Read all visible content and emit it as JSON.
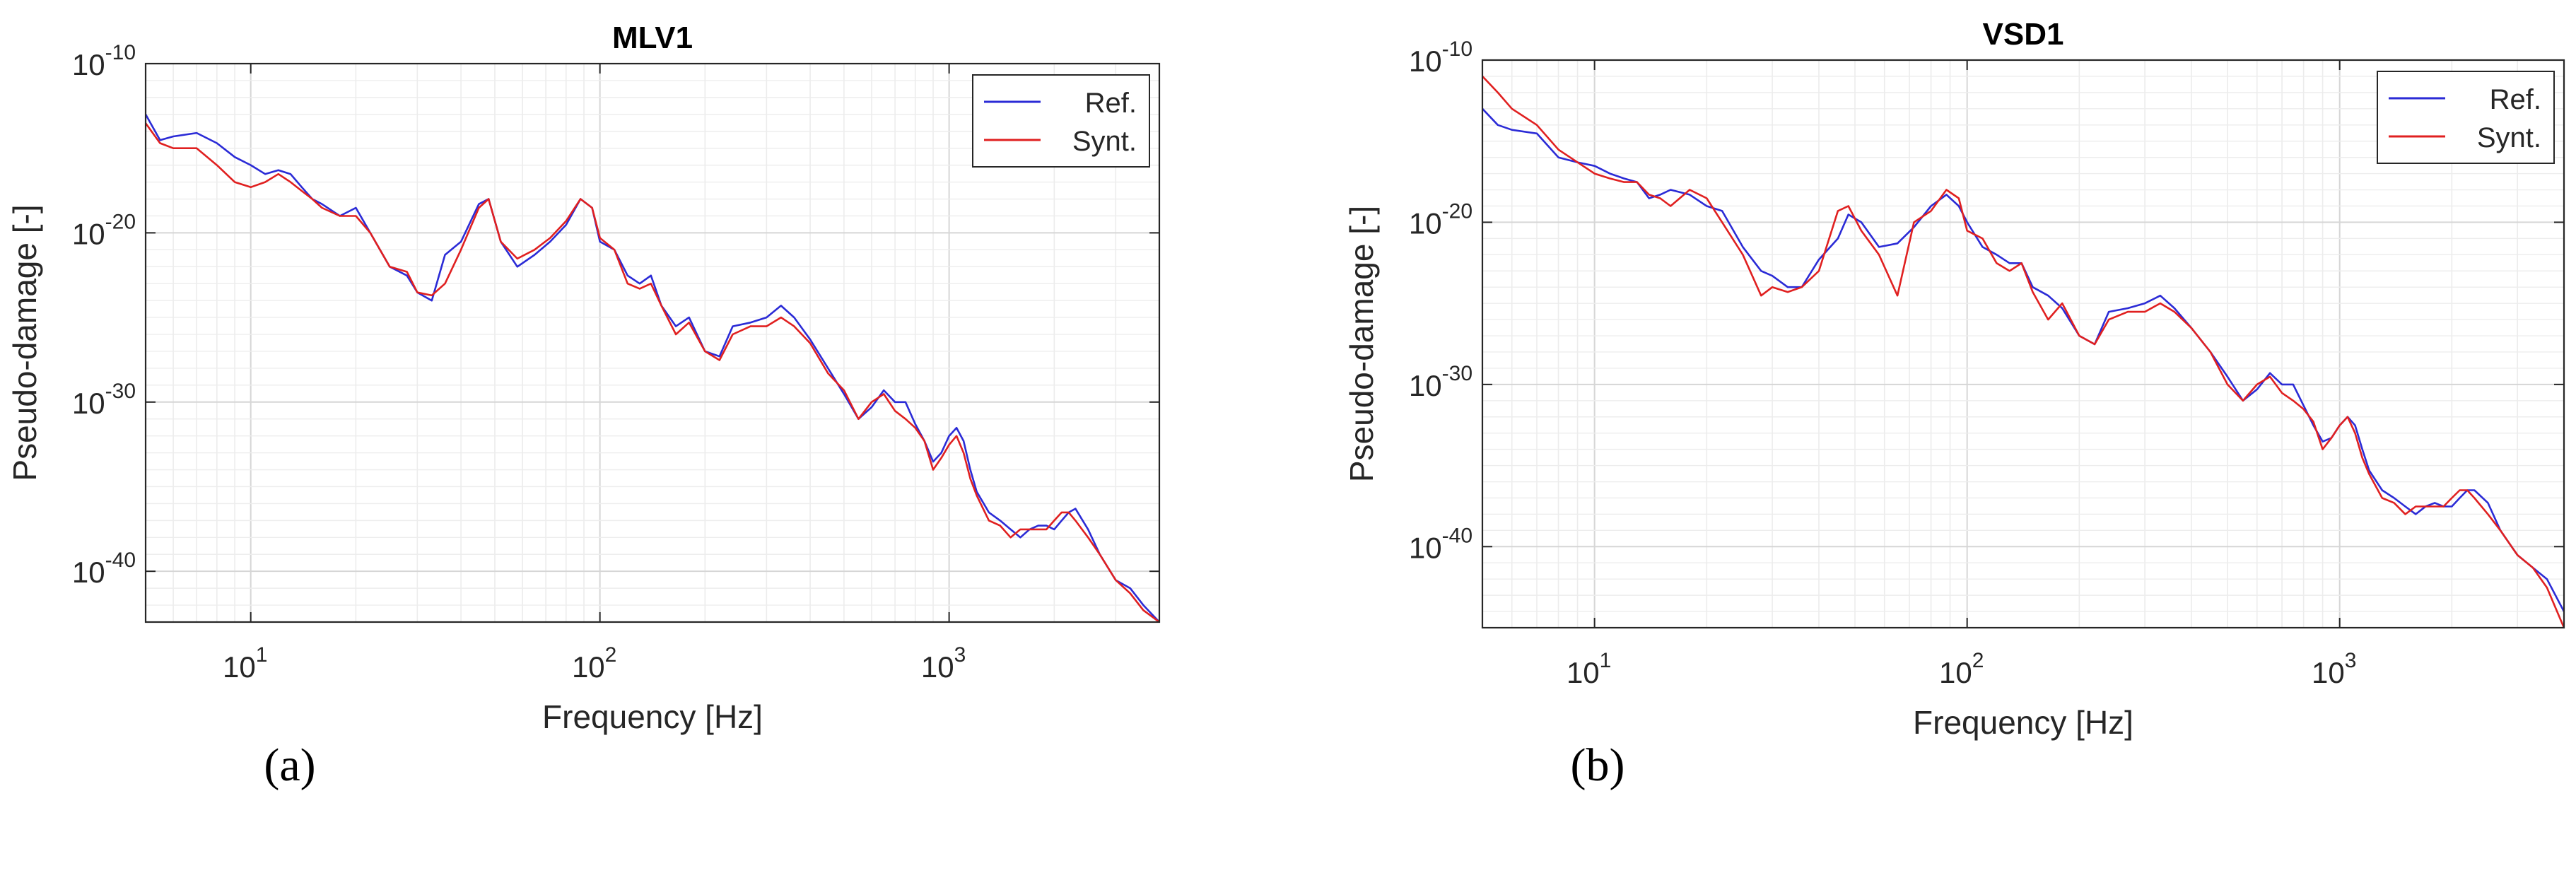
{
  "chart_data": [
    {
      "type": "line",
      "title": "MLV1",
      "xlabel": "Frequency [Hz]",
      "ylabel": "Pseudo-damage [-]",
      "x_scale": "log",
      "y_scale": "log",
      "xlim": [
        5,
        4000
      ],
      "ylim": [
        1e-43,
        1e-10
      ],
      "x_ticks": [
        {
          "value": 10,
          "exp": "1"
        },
        {
          "value": 100,
          "exp": "2"
        },
        {
          "value": 1000,
          "exp": "3"
        }
      ],
      "y_ticks": [
        {
          "value": 1e-40,
          "exp": "-40"
        },
        {
          "value": 1e-30,
          "exp": "-30"
        },
        {
          "value": 1e-20,
          "exp": "-20"
        },
        {
          "value": 1e-10,
          "exp": "-10"
        }
      ],
      "tick_base": "10",
      "grid": true,
      "legend": "top-right",
      "caption": "(a)",
      "series": [
        {
          "name": "Ref.",
          "color": "#2b2bd6",
          "x": [
            5,
            5.5,
            6,
            7,
            8,
            9,
            10,
            11,
            12,
            13,
            14,
            15,
            16,
            18,
            20,
            22,
            25,
            28,
            30,
            33,
            36,
            40,
            45,
            48,
            52,
            58,
            65,
            72,
            80,
            88,
            95,
            100,
            110,
            120,
            130,
            140,
            150,
            165,
            180,
            200,
            220,
            240,
            270,
            300,
            330,
            360,
            400,
            450,
            500,
            550,
            600,
            650,
            700,
            750,
            800,
            850,
            900,
            950,
            1000,
            1050,
            1100,
            1150,
            1200,
            1300,
            1400,
            1500,
            1600,
            1700,
            1800,
            1900,
            2000,
            2100,
            2200,
            2300,
            2500,
            2700,
            3000,
            3300,
            3600,
            4000
          ],
          "y": [
            1e-13,
            3e-15,
            5e-15,
            8e-15,
            2e-15,
            3e-16,
            1e-16,
            3e-17,
            5e-17,
            3e-17,
            5e-18,
            1e-18,
            5e-19,
            1e-19,
            3e-19,
            1e-20,
            1e-22,
            3e-23,
            3e-24,
            1e-24,
            5e-22,
            3e-21,
            5e-19,
            1e-18,
            3e-21,
            1e-22,
            5e-22,
            3e-21,
            3e-20,
            1e-18,
            3e-19,
            3e-21,
            1e-21,
            3e-23,
            1e-23,
            3e-23,
            5e-25,
            3e-26,
            1e-25,
            1e-27,
            5e-28,
            3e-26,
            5e-26,
            1e-25,
            5e-25,
            1e-25,
            5e-27,
            1e-28,
            3e-30,
            1e-31,
            5e-31,
            5e-30,
            1e-30,
            1e-30,
            5e-32,
            5e-33,
            3e-34,
            1e-33,
            1e-32,
            3e-32,
            5e-33,
            1e-34,
            5e-36,
            3e-37,
            1e-37,
            3e-38,
            1e-38,
            3e-38,
            5e-38,
            5e-38,
            3e-38,
            1e-37,
            3e-37,
            5e-37,
            3e-38,
            1e-39,
            3e-41,
            1e-41,
            1e-42,
            3e-44
          ]
        },
        {
          "name": "Synt.",
          "color": "#e02020",
          "x": [
            5,
            5.5,
            6,
            7,
            8,
            9,
            10,
            11,
            12,
            13,
            14,
            15,
            16,
            18,
            20,
            22,
            25,
            28,
            30,
            33,
            36,
            40,
            45,
            48,
            52,
            58,
            65,
            72,
            80,
            88,
            95,
            100,
            110,
            120,
            130,
            140,
            150,
            165,
            180,
            200,
            220,
            240,
            270,
            300,
            330,
            360,
            400,
            450,
            500,
            550,
            600,
            650,
            700,
            750,
            800,
            850,
            900,
            950,
            1000,
            1050,
            1100,
            1150,
            1200,
            1300,
            1400,
            1500,
            1600,
            1700,
            1800,
            1900,
            2000,
            2100,
            2200,
            2300,
            2500,
            2700,
            3000,
            3300,
            3600,
            4000
          ],
          "y": [
            3e-14,
            2e-15,
            1e-15,
            1e-15,
            1e-16,
            1e-17,
            5e-18,
            1e-17,
            3e-17,
            1e-17,
            3e-18,
            1e-18,
            3e-19,
            1e-19,
            1e-19,
            1e-20,
            1e-22,
            5e-23,
            3e-24,
            2e-24,
            1e-23,
            1e-21,
            3e-19,
            1e-18,
            3e-21,
            3e-22,
            1e-21,
            5e-21,
            5e-20,
            1e-18,
            3e-19,
            5e-21,
            1e-21,
            1e-23,
            5e-24,
            1e-23,
            5e-25,
            1e-26,
            5e-26,
            1e-27,
            3e-28,
            1e-26,
            3e-26,
            3e-26,
            1e-25,
            3e-26,
            3e-27,
            5e-29,
            5e-30,
            1e-31,
            1e-30,
            3e-30,
            3e-31,
            1e-31,
            3e-32,
            5e-33,
            1e-34,
            5e-34,
            3e-33,
            1e-32,
            1e-33,
            3e-35,
            3e-36,
            1e-37,
            5e-38,
            1e-38,
            3e-38,
            3e-38,
            3e-38,
            3e-38,
            1e-37,
            3e-37,
            3e-37,
            1e-37,
            1e-38,
            1e-39,
            3e-41,
            5e-42,
            5e-43,
            1e-44
          ]
        }
      ]
    },
    {
      "type": "line",
      "title": "VSD1",
      "xlabel": "Frequency [Hz]",
      "ylabel": "Pseudo-damage [-]",
      "x_scale": "log",
      "y_scale": "log",
      "xlim": [
        5,
        4000
      ],
      "ylim": [
        1e-45,
        1e-10
      ],
      "x_ticks": [
        {
          "value": 10,
          "exp": "1"
        },
        {
          "value": 100,
          "exp": "2"
        },
        {
          "value": 1000,
          "exp": "3"
        }
      ],
      "y_ticks": [
        {
          "value": 1e-40,
          "exp": "-40"
        },
        {
          "value": 1e-30,
          "exp": "-30"
        },
        {
          "value": 1e-20,
          "exp": "-20"
        },
        {
          "value": 1e-10,
          "exp": "-10"
        }
      ],
      "tick_base": "10",
      "grid": true,
      "legend": "top-right",
      "caption": "(b)",
      "series": [
        {
          "name": "Ref.",
          "color": "#2b2bd6",
          "x": [
            5,
            5.5,
            6,
            7,
            8,
            9,
            10,
            11,
            12,
            13,
            14,
            15,
            16,
            18,
            20,
            22,
            25,
            28,
            30,
            33,
            36,
            40,
            45,
            48,
            52,
            58,
            65,
            72,
            80,
            88,
            95,
            100,
            110,
            120,
            130,
            140,
            150,
            165,
            180,
            200,
            220,
            240,
            270,
            300,
            330,
            360,
            400,
            450,
            500,
            550,
            600,
            650,
            700,
            750,
            800,
            850,
            900,
            950,
            1000,
            1050,
            1100,
            1150,
            1200,
            1300,
            1400,
            1500,
            1600,
            1700,
            1800,
            1900,
            2000,
            2100,
            2200,
            2300,
            2500,
            2700,
            3000,
            3300,
            3600,
            4000
          ],
          "y": [
            1e-13,
            1e-14,
            5e-15,
            3e-15,
            1e-16,
            5e-17,
            3e-17,
            1e-17,
            5e-18,
            3e-18,
            3e-19,
            5e-19,
            1e-18,
            5e-19,
            1e-19,
            5e-20,
            3e-22,
            1e-23,
            5e-24,
            1e-24,
            1e-24,
            5e-23,
            1e-21,
            3e-20,
            1e-20,
            3e-22,
            5e-22,
            5e-21,
            1e-19,
            5e-19,
            1e-19,
            1e-20,
            3e-22,
            1e-22,
            3e-23,
            3e-23,
            1e-24,
            3e-25,
            5e-26,
            1e-27,
            3e-28,
            3e-26,
            5e-26,
            1e-25,
            3e-25,
            5e-26,
            3e-27,
            1e-28,
            3e-30,
            1e-31,
            5e-31,
            5e-30,
            1e-30,
            1e-30,
            5e-32,
            3e-33,
            3e-34,
            5e-34,
            3e-33,
            1e-32,
            3e-33,
            1e-34,
            5e-36,
            3e-37,
            1e-37,
            3e-38,
            1e-38,
            3e-38,
            5e-38,
            3e-38,
            3e-38,
            1e-37,
            3e-37,
            3e-37,
            5e-38,
            1e-39,
            3e-41,
            5e-42,
            1e-42,
            1e-44
          ]
        },
        {
          "name": "Synt.",
          "color": "#e02020",
          "x": [
            5,
            5.5,
            6,
            7,
            8,
            9,
            10,
            11,
            12,
            13,
            14,
            15,
            16,
            18,
            20,
            22,
            25,
            28,
            30,
            33,
            36,
            40,
            45,
            48,
            52,
            58,
            65,
            72,
            80,
            88,
            95,
            100,
            110,
            120,
            130,
            140,
            150,
            165,
            180,
            200,
            220,
            240,
            270,
            300,
            330,
            360,
            400,
            450,
            500,
            550,
            600,
            650,
            700,
            750,
            800,
            850,
            900,
            950,
            1000,
            1050,
            1100,
            1150,
            1200,
            1300,
            1400,
            1500,
            1600,
            1700,
            1800,
            1900,
            2000,
            2100,
            2200,
            2300,
            2500,
            2700,
            3000,
            3300,
            3600,
            4000
          ],
          "y": [
            1e-11,
            1e-12,
            1e-13,
            1e-14,
            3e-16,
            5e-17,
            1e-17,
            5e-18,
            3e-18,
            3e-18,
            5e-19,
            3e-19,
            1e-19,
            1e-18,
            3e-19,
            1e-20,
            1e-22,
            3e-25,
            1e-24,
            5e-25,
            1e-24,
            1e-23,
            5e-20,
            1e-19,
            3e-21,
            1e-22,
            3e-25,
            1e-20,
            5e-20,
            1e-18,
            3e-19,
            3e-21,
            1e-21,
            3e-23,
            1e-23,
            3e-23,
            5e-25,
            1e-26,
            1e-25,
            1e-27,
            3e-28,
            1e-26,
            3e-26,
            3e-26,
            1e-25,
            3e-26,
            3e-27,
            1e-28,
            1e-30,
            1e-31,
            1e-30,
            3e-30,
            3e-31,
            1e-31,
            3e-32,
            5e-33,
            1e-34,
            5e-34,
            3e-33,
            1e-32,
            1e-33,
            3e-35,
            3e-36,
            1e-37,
            5e-38,
            1e-38,
            3e-38,
            3e-38,
            3e-38,
            3e-38,
            1e-37,
            3e-37,
            3e-37,
            1e-37,
            1e-38,
            1e-39,
            3e-41,
            5e-42,
            3e-43,
            1e-45
          ]
        }
      ]
    }
  ]
}
